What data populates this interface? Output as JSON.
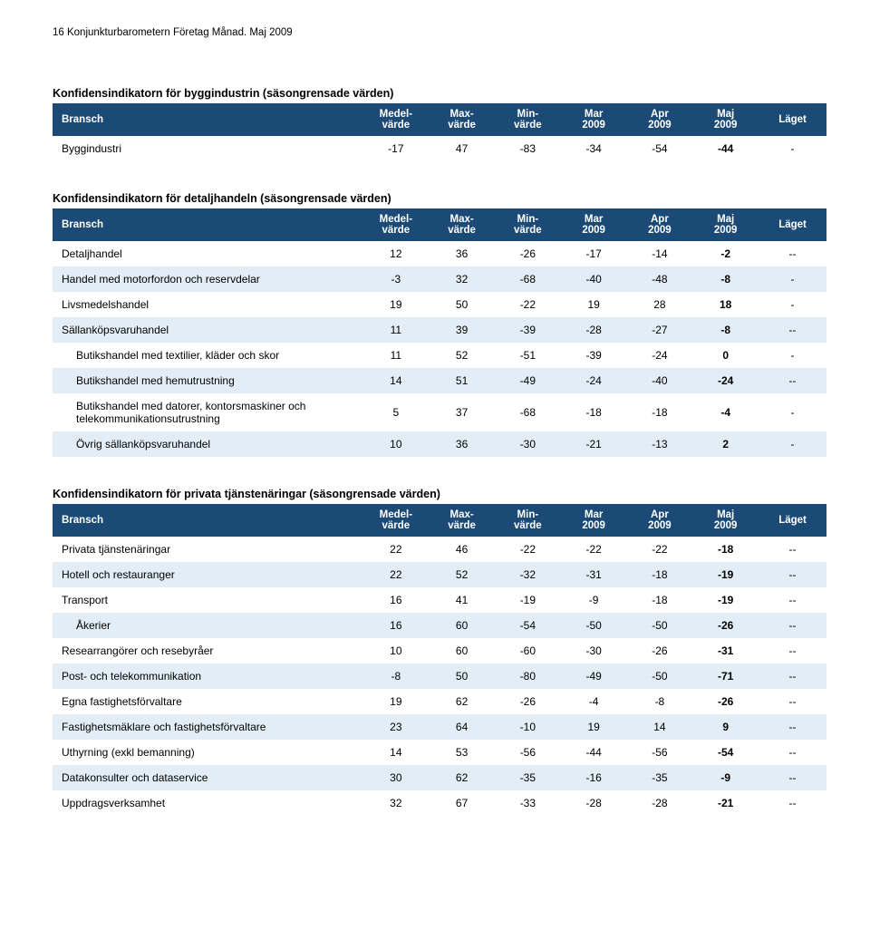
{
  "page_header": "16    Konjunkturbarometern Företag Månad. Maj 2009",
  "colors": {
    "header_bg": "#1b4a76",
    "header_fg": "#ffffff",
    "row_alt_bg": "#e3edf5",
    "text": "#000000",
    "page_bg": "#ffffff"
  },
  "columns": [
    {
      "key": "bransch",
      "label": "Bransch"
    },
    {
      "key": "medel",
      "label": "Medel-\nvärde"
    },
    {
      "key": "max",
      "label": "Max-\nvärde"
    },
    {
      "key": "min",
      "label": "Min-\nvärde"
    },
    {
      "key": "mar",
      "label": "Mar\n2009"
    },
    {
      "key": "apr",
      "label": "Apr\n2009"
    },
    {
      "key": "maj",
      "label": "Maj\n2009"
    },
    {
      "key": "laget",
      "label": "Läget"
    }
  ],
  "tables": [
    {
      "title": "Konfidensindikatorn för byggindustrin (säsongrensade värden)",
      "rows": [
        {
          "label": "Byggindustri",
          "indent": false,
          "alt": false,
          "vals": [
            "-17",
            "47",
            "-83",
            "-34",
            "-54",
            "-44",
            "-"
          ]
        }
      ]
    },
    {
      "title": "Konfidensindikatorn för detaljhandeln (säsongrensade värden)",
      "rows": [
        {
          "label": "Detaljhandel",
          "indent": false,
          "alt": false,
          "vals": [
            "12",
            "36",
            "-26",
            "-17",
            "-14",
            "-2",
            "--"
          ]
        },
        {
          "label": "Handel med motorfordon och reservdelar",
          "indent": false,
          "alt": true,
          "vals": [
            "-3",
            "32",
            "-68",
            "-40",
            "-48",
            "-8",
            "-"
          ]
        },
        {
          "label": "Livsmedelshandel",
          "indent": false,
          "alt": false,
          "vals": [
            "19",
            "50",
            "-22",
            "19",
            "28",
            "18",
            "-"
          ]
        },
        {
          "label": "Sällanköpsvaruhandel",
          "indent": false,
          "alt": true,
          "vals": [
            "11",
            "39",
            "-39",
            "-28",
            "-27",
            "-8",
            "--"
          ]
        },
        {
          "label": "Butikshandel med textilier, kläder och skor",
          "indent": true,
          "alt": false,
          "vals": [
            "11",
            "52",
            "-51",
            "-39",
            "-24",
            "0",
            "-"
          ]
        },
        {
          "label": "Butikshandel med hemutrustning",
          "indent": true,
          "alt": true,
          "vals": [
            "14",
            "51",
            "-49",
            "-24",
            "-40",
            "-24",
            "--"
          ]
        },
        {
          "label": "Butikshandel med datorer, kontorsmaskiner och telekommunikationsutrustning",
          "indent": true,
          "alt": false,
          "vals": [
            "5",
            "37",
            "-68",
            "-18",
            "-18",
            "-4",
            "-"
          ]
        },
        {
          "label": "Övrig sällanköpsvaruhandel",
          "indent": true,
          "alt": true,
          "vals": [
            "10",
            "36",
            "-30",
            "-21",
            "-13",
            "2",
            "-"
          ]
        }
      ]
    },
    {
      "title": "Konfidensindikatorn för privata tjänstenäringar (säsongrensade värden)",
      "rows": [
        {
          "label": "Privata tjänstenäringar",
          "indent": false,
          "alt": false,
          "vals": [
            "22",
            "46",
            "-22",
            "-22",
            "-22",
            "-18",
            "--"
          ]
        },
        {
          "label": "Hotell och restauranger",
          "indent": false,
          "alt": true,
          "vals": [
            "22",
            "52",
            "-32",
            "-31",
            "-18",
            "-19",
            "--"
          ]
        },
        {
          "label": "Transport",
          "indent": false,
          "alt": false,
          "vals": [
            "16",
            "41",
            "-19",
            "-9",
            "-18",
            "-19",
            "--"
          ]
        },
        {
          "label": "Åkerier",
          "indent": true,
          "alt": true,
          "vals": [
            "16",
            "60",
            "-54",
            "-50",
            "-50",
            "-26",
            "--"
          ]
        },
        {
          "label": "Researrangörer och resebyråer",
          "indent": false,
          "alt": false,
          "vals": [
            "10",
            "60",
            "-60",
            "-30",
            "-26",
            "-31",
            "--"
          ]
        },
        {
          "label": "Post- och telekommunikation",
          "indent": false,
          "alt": true,
          "vals": [
            "-8",
            "50",
            "-80",
            "-49",
            "-50",
            "-71",
            "--"
          ]
        },
        {
          "label": "Egna fastighetsförvaltare",
          "indent": false,
          "alt": false,
          "vals": [
            "19",
            "62",
            "-26",
            "-4",
            "-8",
            "-26",
            "--"
          ]
        },
        {
          "label": "Fastighetsmäklare och fastighetsförvaltare",
          "indent": false,
          "alt": true,
          "vals": [
            "23",
            "64",
            "-10",
            "19",
            "14",
            "9",
            "--"
          ]
        },
        {
          "label": "Uthyrning (exkl bemanning)",
          "indent": false,
          "alt": false,
          "vals": [
            "14",
            "53",
            "-56",
            "-44",
            "-56",
            "-54",
            "--"
          ]
        },
        {
          "label": "Datakonsulter och dataservice",
          "indent": false,
          "alt": true,
          "vals": [
            "30",
            "62",
            "-35",
            "-16",
            "-35",
            "-9",
            "--"
          ]
        },
        {
          "label": "Uppdragsverksamhet",
          "indent": false,
          "alt": false,
          "vals": [
            "32",
            "67",
            "-33",
            "-28",
            "-28",
            "-21",
            "--"
          ]
        }
      ]
    }
  ]
}
